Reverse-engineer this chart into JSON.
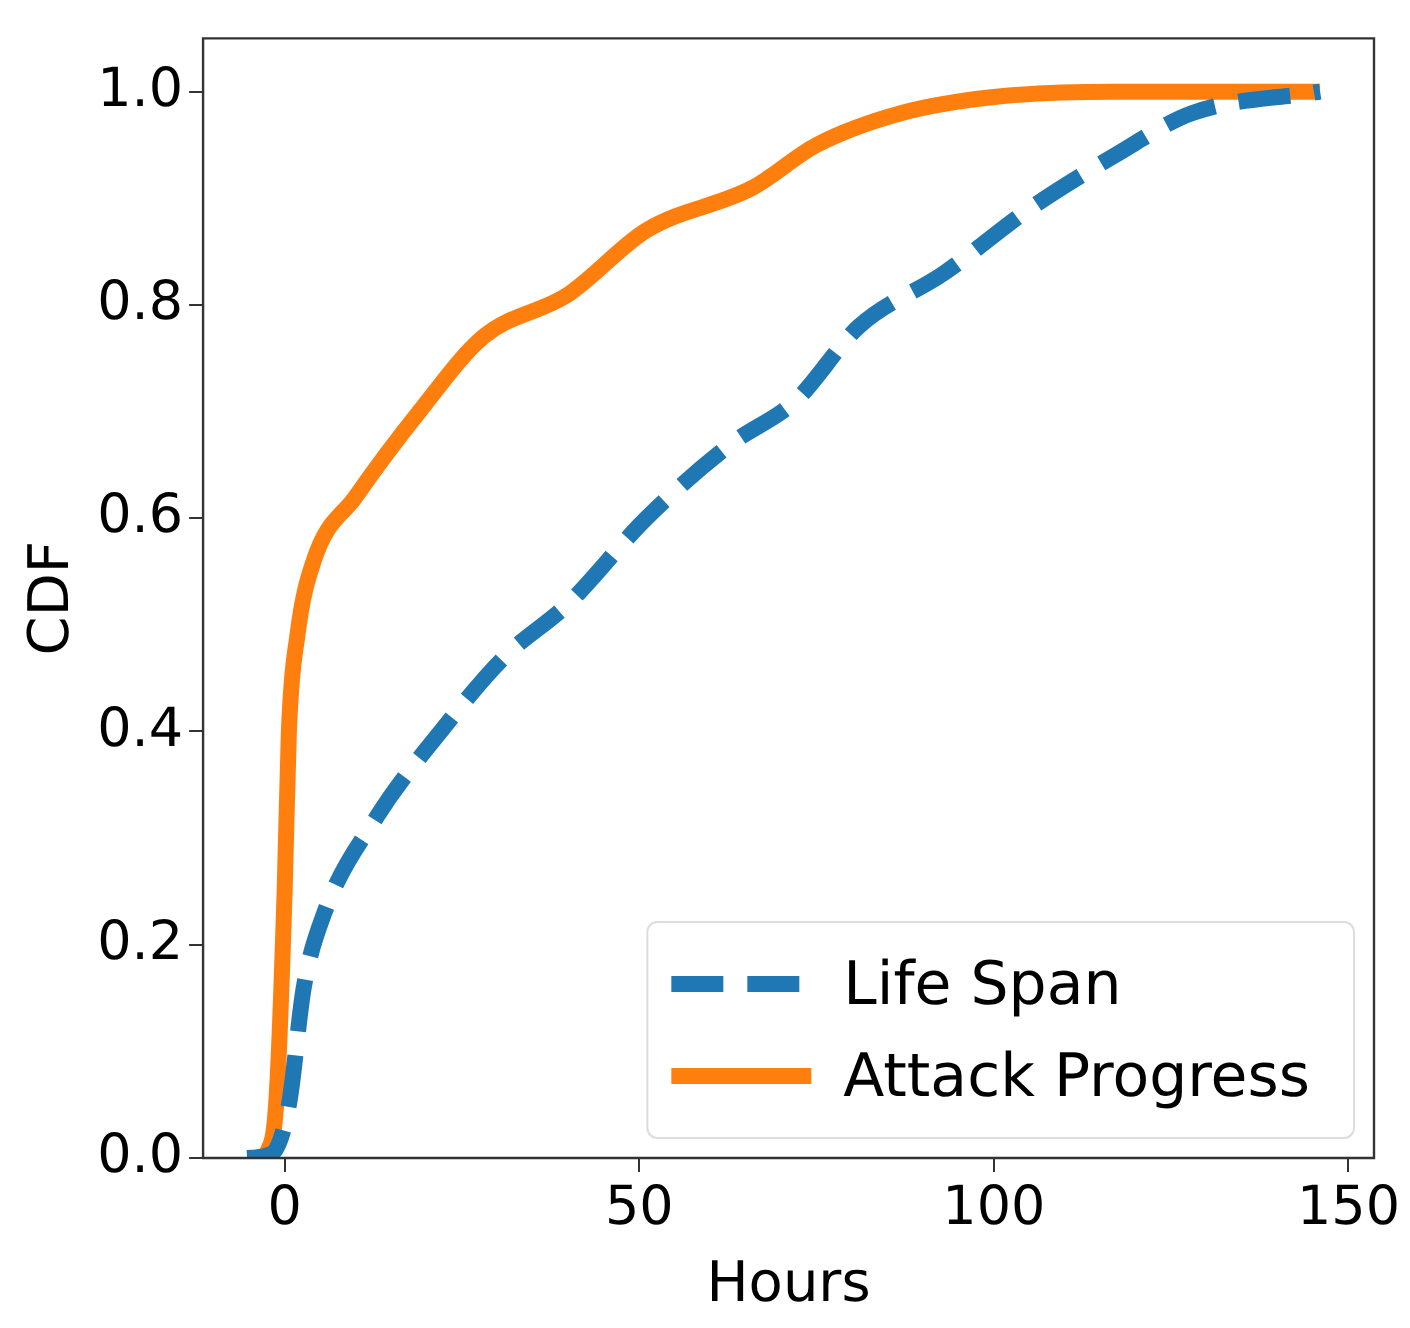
{
  "chart_data": {
    "type": "line",
    "xlabel": "Hours",
    "ylabel": "CDF",
    "xlim": [
      -11.5,
      153.6
    ],
    "ylim": [
      0,
      1.05
    ],
    "xticks": [
      0,
      50,
      100,
      150
    ],
    "yticks": [
      {
        "value": 0,
        "label": "0.0"
      },
      {
        "value": 0.2,
        "label": "0.2"
      },
      {
        "value": 0.4,
        "label": "0.4"
      },
      {
        "value": 0.6,
        "label": "0.6"
      },
      {
        "value": 0.8,
        "label": "0.8"
      },
      {
        "value": 1,
        "label": "1.0"
      }
    ],
    "grid": false,
    "legend": "bottom right",
    "marker": "none",
    "series": [
      {
        "name": "Life Span",
        "color": "#1f77b4",
        "line_style": "dashed",
        "x": [
          -5.3,
          -1.8,
          0.6,
          2.7,
          5.6,
          13,
          22,
          31,
          40,
          51,
          63,
          72,
          81,
          93,
          105,
          117,
          128,
          146
        ],
        "values": [
          0,
          0.004,
          0.05,
          0.16,
          0.23,
          0.32,
          0.4,
          0.47,
          0.52,
          0.6,
          0.67,
          0.71,
          0.78,
          0.83,
          0.89,
          0.94,
          0.98,
          1
        ]
      },
      {
        "name": "Attack Progress",
        "color": "#ff7f0e",
        "line_style": "solid",
        "x": [
          -2.7,
          -1.2,
          0,
          0.6,
          1.8,
          4.1,
          10,
          19,
          28,
          40,
          51,
          66,
          75,
          87,
          100,
          117,
          146
        ],
        "values": [
          0,
          0.05,
          0.25,
          0.4,
          0.49,
          0.56,
          0.62,
          0.7,
          0.77,
          0.81,
          0.87,
          0.91,
          0.95,
          0.98,
          0.995,
          1,
          1
        ]
      }
    ]
  }
}
